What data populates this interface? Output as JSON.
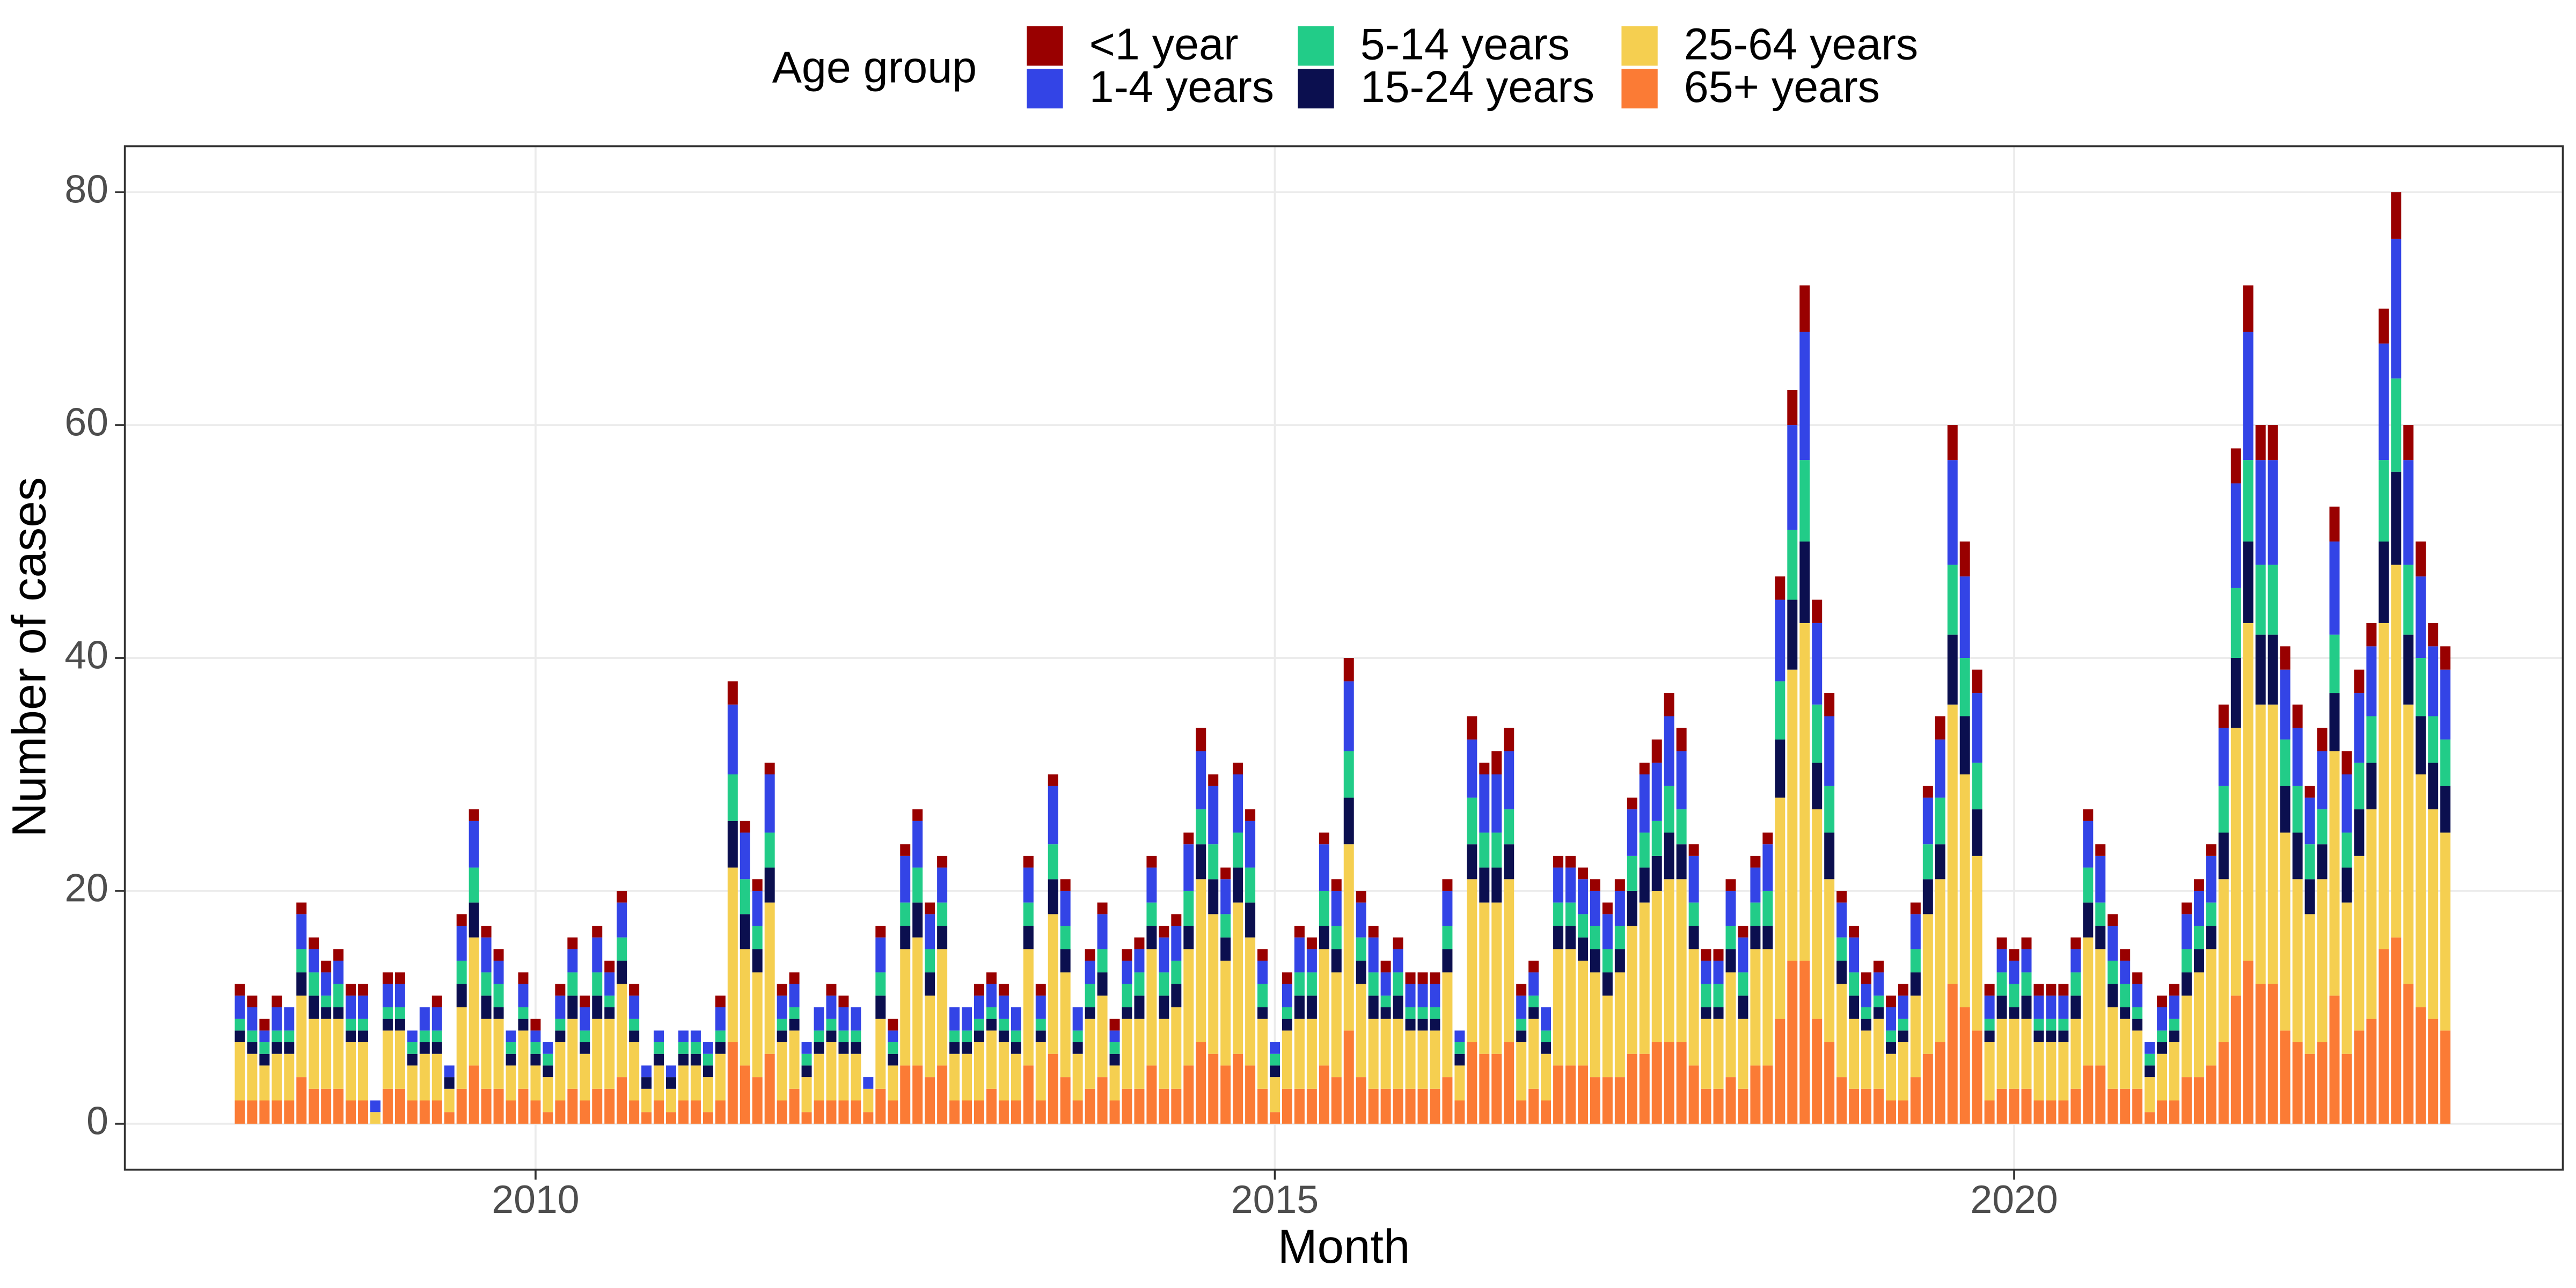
{
  "chart_data": {
    "type": "stacked_bar",
    "x_label": "Month",
    "y_label": "Number of cases",
    "legend_title": "Age group",
    "legend_position": "top",
    "grid": true,
    "categories": [
      null,
      null,
      null,
      null,
      null,
      null,
      null,
      null,
      null,
      null,
      null,
      null,
      null,
      null,
      null,
      null,
      null,
      null,
      null,
      null,
      null,
      null,
      null,
      null,
      "2010",
      null,
      null,
      null,
      null,
      null,
      null,
      null,
      null,
      null,
      null,
      null,
      null,
      null,
      null,
      null,
      null,
      null,
      null,
      null,
      null,
      null,
      null,
      null,
      null,
      null,
      null,
      null,
      null,
      null,
      null,
      null,
      null,
      null,
      null,
      null,
      null,
      null,
      null,
      null,
      null,
      null,
      null,
      null,
      null,
      null,
      null,
      null,
      null,
      null,
      null,
      null,
      null,
      null,
      null,
      null,
      null,
      null,
      null,
      null,
      "2015",
      null,
      null,
      null,
      null,
      null,
      null,
      null,
      null,
      null,
      null,
      null,
      null,
      null,
      null,
      null,
      null,
      null,
      null,
      null,
      null,
      null,
      null,
      null,
      null,
      null,
      null,
      null,
      null,
      null,
      null,
      null,
      null,
      null,
      null,
      null,
      null,
      null,
      null,
      null,
      null,
      null,
      null,
      null,
      null,
      null,
      null,
      null,
      null,
      null,
      null,
      null,
      null,
      null,
      null,
      null,
      null,
      null,
      null,
      null,
      "2020",
      null,
      null,
      null,
      null,
      null,
      null,
      null,
      null,
      null,
      null,
      null,
      null,
      null,
      null,
      null,
      null,
      null,
      null,
      null,
      null,
      null,
      null,
      null,
      null,
      null,
      null,
      null,
      null,
      null,
      null,
      null,
      null,
      null,
      null,
      null
    ],
    "ylim": [
      -3.95,
      83.95
    ],
    "yticks": [
      0,
      20,
      40,
      60,
      80
    ],
    "series": [
      {
        "name": "<1 year",
        "color": "#990000",
        "values": [
          1,
          1,
          1,
          1,
          0,
          1,
          1,
          1,
          1,
          1,
          1,
          0,
          1,
          1,
          0,
          0,
          1,
          0,
          1,
          1,
          1,
          1,
          0,
          1,
          1,
          0,
          1,
          1,
          1,
          1,
          1,
          1,
          1,
          0,
          0,
          0,
          0,
          0,
          0,
          1,
          2,
          1,
          1,
          1,
          1,
          1,
          0,
          0,
          1,
          1,
          0,
          0,
          1,
          1,
          1,
          1,
          1,
          1,
          0,
          0,
          1,
          1,
          1,
          0,
          1,
          1,
          1,
          1,
          0,
          1,
          1,
          1,
          1,
          1,
          1,
          1,
          1,
          1,
          2,
          1,
          1,
          1,
          1,
          1,
          0,
          1,
          1,
          1,
          1,
          1,
          2,
          1,
          1,
          1,
          1,
          1,
          1,
          1,
          1,
          0,
          2,
          1,
          2,
          2,
          1,
          1,
          0,
          1,
          1,
          1,
          1,
          1,
          1,
          1,
          1,
          2,
          2,
          2,
          1,
          1,
          1,
          1,
          1,
          1,
          1,
          2,
          3,
          4,
          2,
          2,
          1,
          1,
          1,
          1,
          1,
          1,
          1,
          1,
          2,
          3,
          3,
          2,
          1,
          1,
          1,
          1,
          1,
          1,
          1,
          1,
          1,
          1,
          1,
          1,
          1,
          0,
          1,
          1,
          1,
          1,
          1,
          2,
          3,
          4,
          3,
          3,
          2,
          2,
          1,
          2,
          3,
          2,
          2,
          2,
          3,
          4,
          3,
          3,
          2,
          2
        ]
      },
      {
        "name": "1-4 years",
        "color": "#3344e6",
        "values": [
          2,
          2,
          1,
          2,
          2,
          3,
          2,
          2,
          2,
          2,
          2,
          1,
          2,
          2,
          1,
          2,
          2,
          1,
          3,
          4,
          3,
          2,
          1,
          2,
          1,
          1,
          2,
          2,
          2,
          3,
          2,
          3,
          2,
          1,
          1,
          1,
          1,
          1,
          1,
          2,
          6,
          4,
          3,
          5,
          2,
          2,
          1,
          2,
          2,
          2,
          2,
          1,
          3,
          1,
          4,
          4,
          3,
          3,
          2,
          2,
          2,
          2,
          2,
          2,
          3,
          2,
          5,
          3,
          2,
          2,
          3,
          1,
          2,
          2,
          3,
          3,
          3,
          4,
          5,
          5,
          3,
          5,
          4,
          2,
          1,
          2,
          3,
          2,
          4,
          3,
          6,
          3,
          3,
          2,
          2,
          2,
          2,
          2,
          3,
          1,
          5,
          5,
          5,
          5,
          2,
          2,
          2,
          3,
          3,
          3,
          3,
          3,
          3,
          4,
          5,
          5,
          6,
          5,
          4,
          2,
          2,
          3,
          3,
          3,
          4,
          7,
          9,
          11,
          7,
          6,
          3,
          3,
          2,
          2,
          2,
          2,
          3,
          4,
          5,
          9,
          7,
          6,
          2,
          2,
          2,
          2,
          2,
          2,
          2,
          2,
          4,
          4,
          3,
          2,
          2,
          1,
          2,
          2,
          3,
          3,
          4,
          5,
          9,
          11,
          9,
          9,
          6,
          5,
          4,
          5,
          8,
          5,
          6,
          6,
          10,
          12,
          9,
          7,
          6,
          6
        ]
      },
      {
        "name": "5-14 years",
        "color": "#22cc88",
        "values": [
          1,
          1,
          1,
          1,
          1,
          2,
          2,
          1,
          2,
          1,
          1,
          0,
          1,
          1,
          1,
          1,
          1,
          0,
          2,
          3,
          2,
          2,
          1,
          1,
          1,
          1,
          1,
          2,
          1,
          2,
          1,
          2,
          1,
          0,
          1,
          0,
          1,
          1,
          1,
          1,
          4,
          3,
          2,
          3,
          1,
          1,
          1,
          1,
          1,
          1,
          1,
          0,
          2,
          1,
          2,
          3,
          2,
          2,
          1,
          1,
          1,
          1,
          1,
          1,
          2,
          1,
          3,
          2,
          1,
          2,
          2,
          1,
          2,
          2,
          2,
          2,
          2,
          3,
          3,
          3,
          2,
          3,
          3,
          2,
          1,
          1,
          2,
          2,
          3,
          2,
          4,
          2,
          2,
          1,
          2,
          1,
          1,
          1,
          2,
          1,
          4,
          3,
          3,
          3,
          1,
          1,
          1,
          2,
          2,
          2,
          2,
          2,
          2,
          3,
          3,
          3,
          4,
          3,
          2,
          2,
          2,
          2,
          2,
          2,
          3,
          5,
          6,
          7,
          5,
          4,
          2,
          2,
          1,
          1,
          1,
          1,
          2,
          3,
          4,
          6,
          5,
          4,
          1,
          2,
          2,
          2,
          1,
          1,
          1,
          2,
          3,
          2,
          2,
          2,
          1,
          1,
          1,
          1,
          2,
          2,
          2,
          4,
          6,
          7,
          6,
          6,
          4,
          4,
          3,
          3,
          5,
          3,
          4,
          4,
          7,
          8,
          6,
          5,
          4,
          4
        ]
      },
      {
        "name": "15-24 years",
        "color": "#0b0f4f",
        "values": [
          1,
          1,
          1,
          1,
          1,
          2,
          2,
          1,
          1,
          1,
          1,
          0,
          1,
          1,
          1,
          1,
          1,
          1,
          2,
          3,
          2,
          1,
          1,
          1,
          1,
          1,
          1,
          2,
          1,
          2,
          1,
          2,
          1,
          1,
          1,
          1,
          1,
          1,
          1,
          1,
          4,
          3,
          2,
          3,
          1,
          1,
          1,
          1,
          1,
          1,
          1,
          0,
          2,
          1,
          2,
          3,
          2,
          2,
          1,
          1,
          1,
          1,
          1,
          1,
          2,
          1,
          3,
          2,
          1,
          1,
          2,
          1,
          1,
          2,
          2,
          2,
          2,
          2,
          3,
          3,
          2,
          3,
          3,
          1,
          1,
          1,
          2,
          2,
          2,
          2,
          4,
          2,
          2,
          1,
          2,
          1,
          1,
          1,
          2,
          1,
          3,
          3,
          3,
          3,
          1,
          1,
          1,
          2,
          2,
          2,
          2,
          2,
          2,
          3,
          3,
          3,
          4,
          3,
          2,
          1,
          1,
          2,
          2,
          2,
          2,
          5,
          6,
          7,
          4,
          4,
          2,
          2,
          1,
          1,
          1,
          1,
          2,
          3,
          3,
          6,
          5,
          4,
          1,
          2,
          1,
          2,
          1,
          1,
          1,
          2,
          3,
          2,
          2,
          1,
          1,
          1,
          1,
          1,
          2,
          2,
          2,
          4,
          6,
          7,
          6,
          6,
          4,
          4,
          3,
          3,
          5,
          3,
          4,
          4,
          7,
          8,
          6,
          5,
          4,
          4
        ]
      },
      {
        "name": "25-64 years",
        "color": "#f5cf50",
        "values": [
          5,
          4,
          3,
          4,
          4,
          7,
          6,
          6,
          6,
          5,
          5,
          1,
          5,
          5,
          3,
          4,
          4,
          2,
          7,
          11,
          6,
          6,
          3,
          5,
          3,
          3,
          5,
          6,
          4,
          6,
          6,
          8,
          5,
          2,
          3,
          2,
          3,
          3,
          3,
          4,
          15,
          10,
          9,
          13,
          5,
          5,
          3,
          4,
          5,
          4,
          4,
          2,
          6,
          3,
          10,
          11,
          7,
          10,
          4,
          4,
          5,
          5,
          5,
          4,
          10,
          5,
          12,
          9,
          4,
          6,
          7,
          3,
          6,
          6,
          10,
          6,
          7,
          10,
          14,
          12,
          9,
          13,
          11,
          6,
          3,
          5,
          6,
          6,
          10,
          9,
          16,
          8,
          6,
          6,
          6,
          5,
          5,
          5,
          9,
          3,
          14,
          13,
          13,
          14,
          5,
          6,
          4,
          10,
          10,
          9,
          9,
          7,
          9,
          11,
          13,
          13,
          14,
          14,
          10,
          6,
          6,
          9,
          6,
          10,
          10,
          19,
          25,
          29,
          18,
          14,
          8,
          6,
          5,
          6,
          4,
          5,
          7,
          12,
          14,
          24,
          20,
          15,
          5,
          6,
          6,
          6,
          5,
          5,
          5,
          6,
          11,
          10,
          7,
          6,
          5,
          3,
          4,
          5,
          7,
          9,
          10,
          14,
          23,
          29,
          24,
          24,
          17,
          14,
          12,
          14,
          21,
          13,
          15,
          18,
          28,
          32,
          24,
          20,
          18,
          17
        ]
      },
      {
        "name": "65+ years",
        "color": "#fb7b35",
        "values": [
          2,
          2,
          2,
          2,
          2,
          4,
          3,
          3,
          3,
          2,
          2,
          0,
          3,
          3,
          2,
          2,
          2,
          1,
          3,
          5,
          3,
          3,
          2,
          3,
          2,
          1,
          2,
          3,
          2,
          3,
          3,
          4,
          2,
          1,
          2,
          1,
          2,
          2,
          1,
          2,
          7,
          5,
          4,
          6,
          2,
          3,
          1,
          2,
          2,
          2,
          2,
          1,
          3,
          2,
          5,
          5,
          4,
          5,
          2,
          2,
          2,
          3,
          2,
          2,
          5,
          2,
          6,
          4,
          2,
          3,
          4,
          2,
          3,
          3,
          5,
          3,
          3,
          5,
          7,
          6,
          5,
          6,
          5,
          3,
          1,
          3,
          3,
          3,
          5,
          4,
          8,
          4,
          3,
          3,
          3,
          3,
          3,
          3,
          4,
          2,
          7,
          6,
          6,
          7,
          2,
          3,
          2,
          5,
          5,
          5,
          4,
          4,
          4,
          6,
          6,
          7,
          7,
          7,
          5,
          3,
          3,
          4,
          3,
          5,
          5,
          9,
          14,
          14,
          9,
          7,
          4,
          3,
          3,
          3,
          2,
          2,
          4,
          6,
          7,
          12,
          10,
          8,
          2,
          3,
          3,
          3,
          2,
          2,
          2,
          3,
          5,
          5,
          3,
          3,
          3,
          1,
          2,
          2,
          4,
          4,
          5,
          7,
          11,
          14,
          12,
          12,
          8,
          7,
          6,
          7,
          11,
          6,
          8,
          9,
          15,
          16,
          12,
          10,
          9,
          8
        ]
      }
    ]
  }
}
